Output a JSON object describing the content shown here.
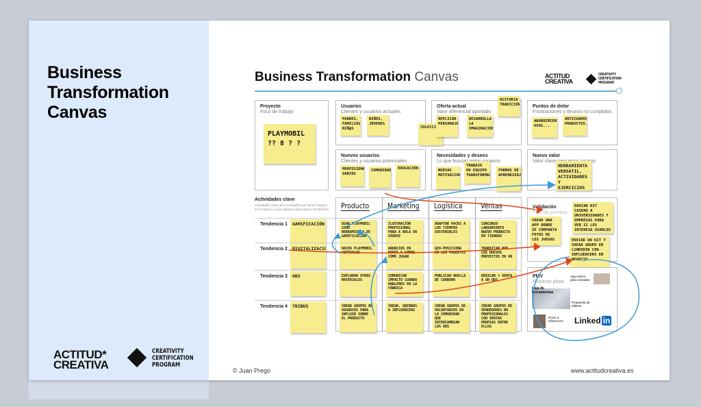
{
  "slide": {
    "title": "Business Transformation Canvas",
    "logos": {
      "actitud": "ACTITUD* CREATIVA",
      "ccp": "CREATIVITY CERTIFICATION PROGRAM"
    },
    "footer": {
      "author": "© Juan Prego",
      "website": "www.actitudcreativa.es"
    }
  },
  "canvas": {
    "title_bold": "Business Transformation",
    "title_light": "Canvas",
    "logo_actitud": "ACTITUD CREATIVA",
    "logo_ccp": "CREATIVITY CERTIFICATION PROGRAM",
    "boxes": {
      "proyecto": {
        "title": "Proyecto",
        "subtitle": "Foco de trabajo",
        "notes": [
          "Playmobil ?? 8 ? ?"
        ]
      },
      "usuarios": {
        "title": "Usuarios",
        "subtitle": "Clientes y usuarios actuales",
        "notes": [
          "Padres, familias, niñ@s",
          "Niños, jóvenes",
          "Coleccionistas"
        ]
      },
      "oferta": {
        "title": "Oferta actual",
        "subtitle": "Valor diferencial aportado",
        "notes": [
          "Historia tradición",
          "Replicar personajes",
          "Desarrolla la imaginación"
        ]
      },
      "dolor": {
        "title": "Puntos de dolor",
        "subtitle": "Frustraciones y deseos no cumplidos",
        "notes": [
          "Aburrimiento usos...",
          "Anticuados productos..."
        ]
      },
      "nuevos": {
        "title": "Nuevos usuarios",
        "subtitle": "Clientes y usuarios potenciales",
        "notes": [
          "Profesionales varios",
          "Comunidades",
          "Educación"
        ]
      },
      "necesidades": {
        "title": "Necesidades y deseos",
        "subtitle": "Lo que buscan estos usuarios",
        "notes": [
          "Nuevas motivaciones",
          "Trabajo en equipo transformación",
          "Formas de aprendizaje"
        ]
      },
      "nuevovalor": {
        "title": "Nuevo valor",
        "subtitle": "Valor clave para estos grupos",
        "notes": [
          "Herramienta versátil, actividades y ejercicios"
        ]
      }
    },
    "actividades": {
      "title": "Actividades clave",
      "subtitle": "Actividades clave de la compañía que tienen impacto en el negocio y que estamos dispuestos a transformar.",
      "columns": [
        "Producto",
        "Marketing",
        "Logística",
        "Ventas"
      ],
      "rows": [
        {
          "label": "Tendencia 1",
          "trend": "Gamificación",
          "cells": [
            "Usar Playmobil como herramienta de gamificación",
            "Ilustración profesional para a bola en vídeos",
            "Adaptar packs a los tiempos sostenibles",
            "Concurso lanzamiento nuevo producto en tiendas"
          ]
        },
        {
          "label": "Tendencia 2",
          "trend": "Digitalización",
          "cells": [
            "Hacer playmobil virtuales",
            "Anuncios en redes y sobre cómo jugar",
            "Geo-posiciona en los paquetes",
            "Transitar por los nuevos proyectos en VR"
          ]
        },
        {
          "label": "Tendencia 3",
          "trend": "ODS",
          "cells": [
            "Explorar otros materiales",
            "Comunicar impacto cuando hablemos en la fábrica",
            "Publicar huella de carbono",
            "Dedicar % venta a un ODS"
          ]
        },
        {
          "label": "Tendencia 4",
          "trend": "Tribus",
          "cells": [
            "Crear grupos de usuarios para influir sobre el producto",
            "Crear, unirnos a influencers",
            "Crear grupos de voluntarios en la comunidad que intercambian los ODS",
            "Crear grupos de vendedores no profesionales con ventas propias entre ellos"
          ]
        }
      ]
    },
    "validacion": {
      "title": "Validación",
      "subtitle": "Plan de pruebas",
      "notes": [
        "Crear una app donde se comparta fotos de los juegos",
        "Enviar kit casero a universidades y empresas para ver si les interesa usarlos",
        "Enviar un kit y crear grupo en LinkedIn con influencers en negocio"
      ]
    },
    "pmv": {
      "title": "PMV",
      "subtitle": "Proyecto piloto",
      "annotations": [
        "Caja de herramientas",
        "App sesión para consultar",
        "Propuesta de talleres",
        "Envío a influencers"
      ],
      "linkedin": "Linked",
      "linkedin_in": "in"
    }
  },
  "colors": {
    "note": "#f7ec8e",
    "panel": "#dceafb",
    "arrow_red": "#d9481c",
    "arrow_blue": "#3d9bd6",
    "line": "#6aaed6"
  }
}
